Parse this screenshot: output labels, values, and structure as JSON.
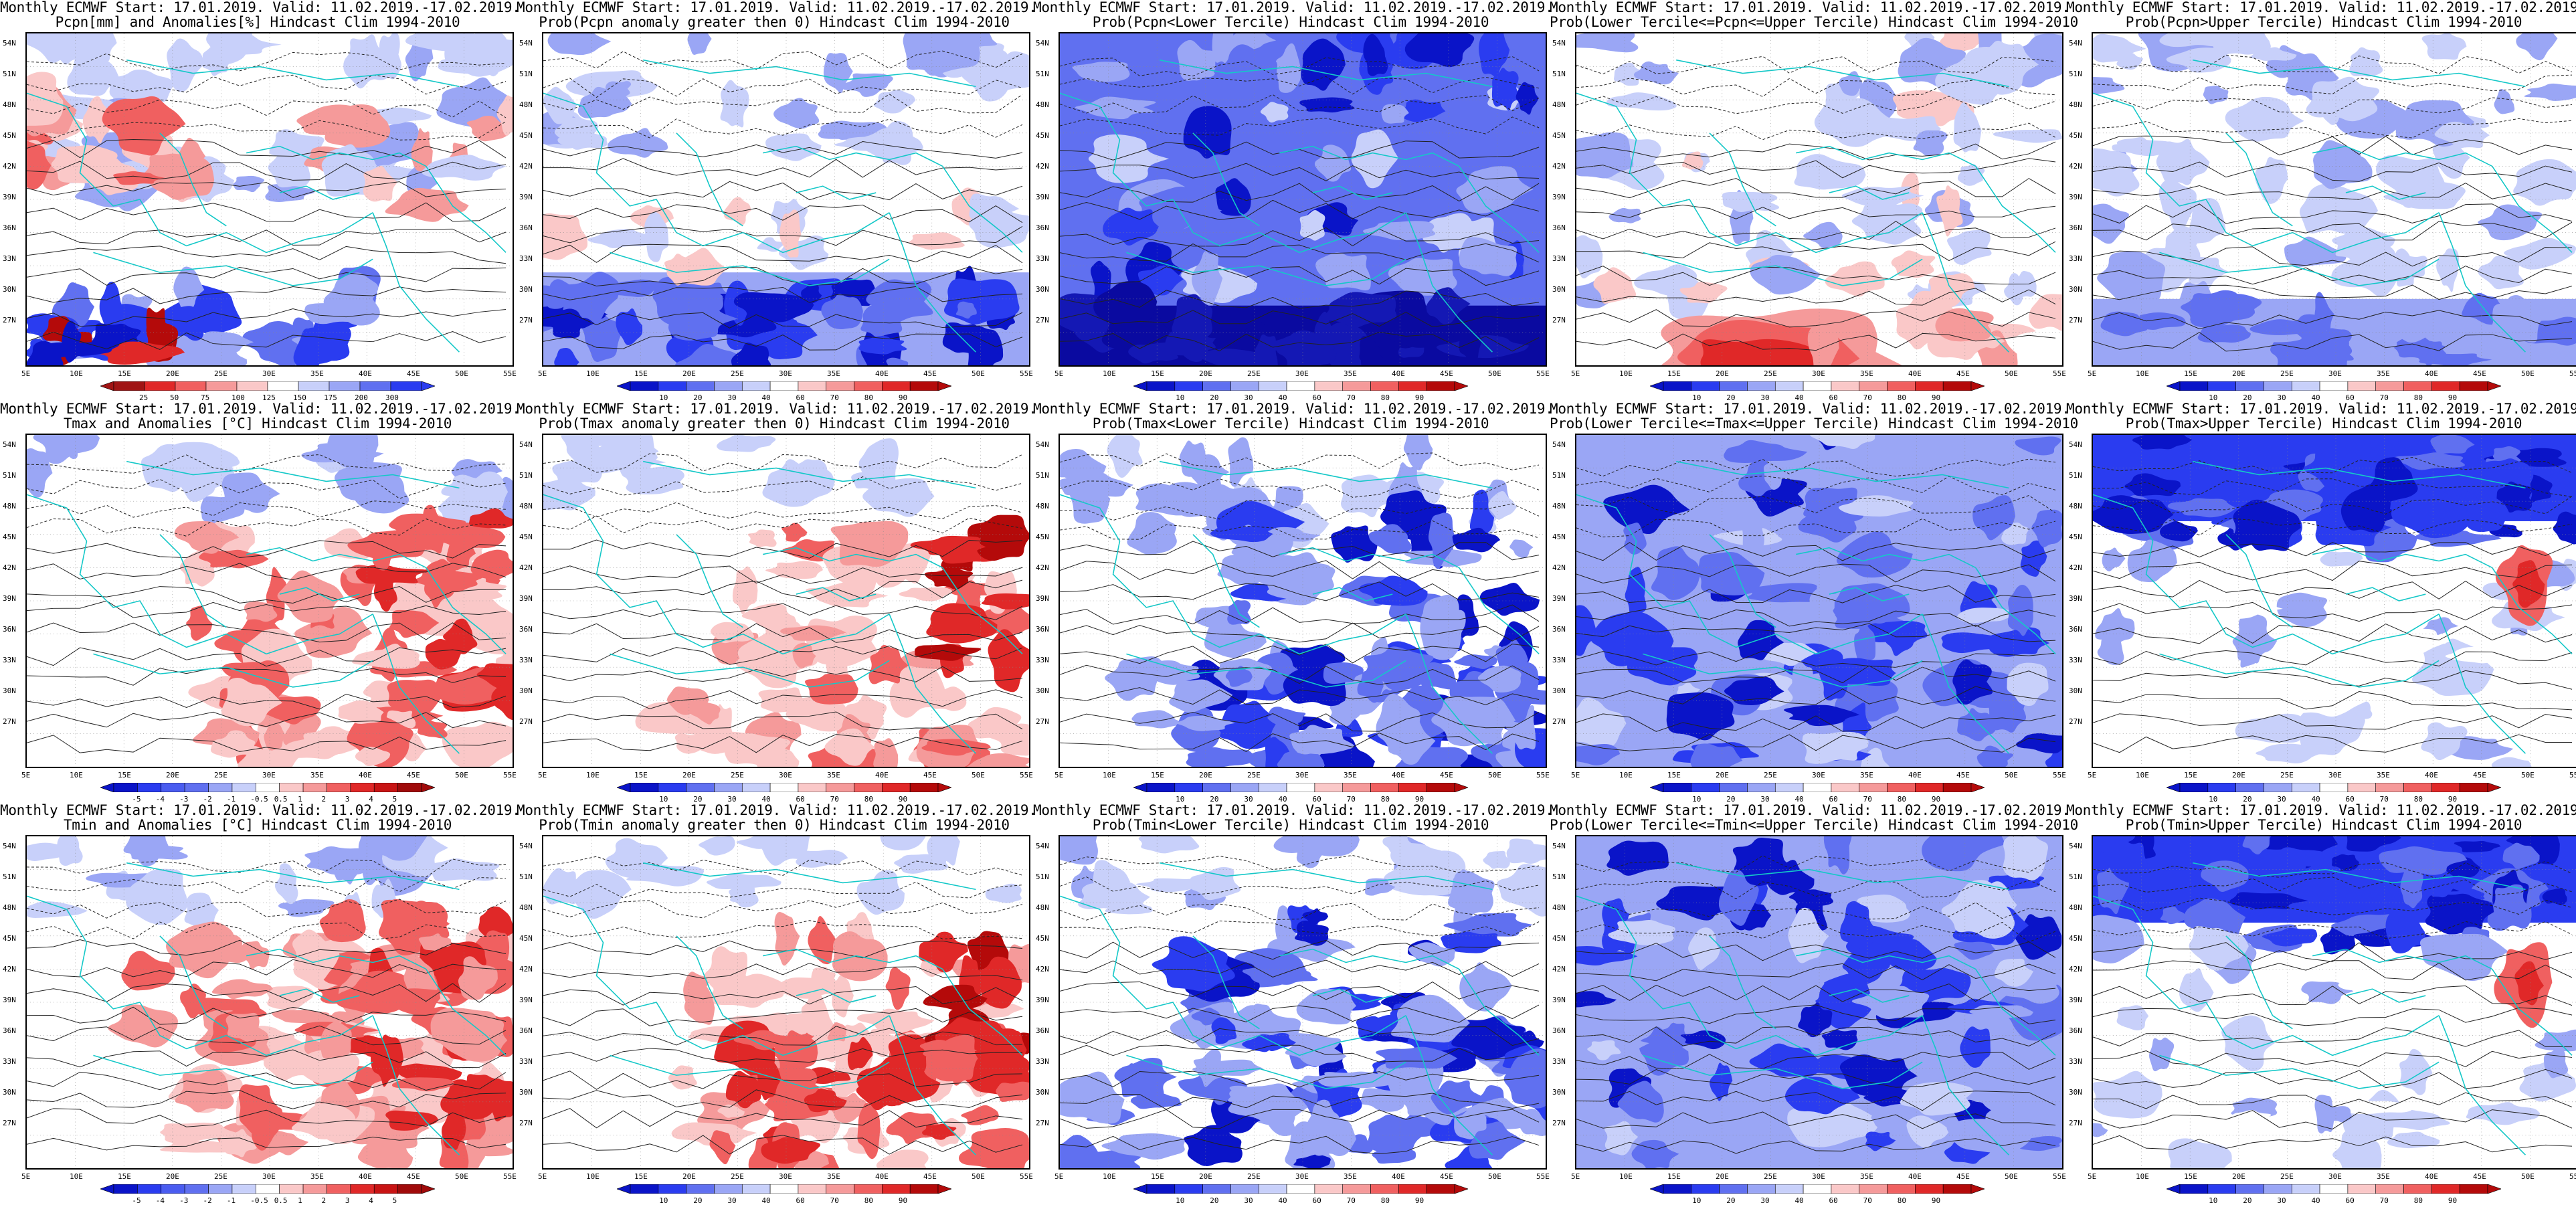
{
  "common_line1": "Monthly ECMWF Start: 17.01.2019. Valid: 11.02.2019.-17.02.2019.",
  "lat_labels": [
    "54N",
    "51N",
    "48N",
    "45N",
    "42N",
    "39N",
    "36N",
    "33N",
    "30N",
    "27N"
  ],
  "lon_labels": [
    "5E",
    "10E",
    "15E",
    "20E",
    "25E",
    "30E",
    "35E",
    "40E",
    "45E",
    "50E",
    "55E"
  ],
  "colorbars": {
    "pcpn_anom": [
      "25",
      "50",
      "75",
      "100",
      "125",
      "150",
      "175",
      "200",
      "300"
    ],
    "prob": [
      "10",
      "20",
      "30",
      "40",
      "60",
      "70",
      "80",
      "90"
    ],
    "temp_anom": [
      "-5",
      "-4",
      "-3",
      "-2",
      "-1",
      "-0.5",
      "0.5",
      "1",
      "2",
      "3",
      "4",
      "5"
    ]
  },
  "panels": [
    {
      "line2": "Pcpn[mm] and Anomalies[%] Hindcast Clim 1994-2010",
      "scheme": "pcpn",
      "colorbar": "pcpn_anom"
    },
    {
      "line2": "Prob(Pcpn anomaly greater then 0) Hindcast Clim 1994-2010",
      "scheme": "pcpnpos",
      "colorbar": "prob"
    },
    {
      "line2": "Prob(Pcpn<Lower Tercile) Hindcast Clim 1994-2010",
      "scheme": "pcpnlow",
      "colorbar": "prob"
    },
    {
      "line2": "Prob(Lower Tercile<=Pcpn<=Upper Tercile) Hindcast Clim 1994-2010",
      "scheme": "pcpnmid",
      "colorbar": "prob"
    },
    {
      "line2": "Prob(Pcpn>Upper Tercile) Hindcast Clim 1994-2010",
      "scheme": "pcpnup",
      "colorbar": "prob"
    },
    {
      "line2": "Tmax and Anomalies [°C] Hindcast Clim 1994-2010",
      "scheme": "tanom",
      "colorbar": "temp_anom"
    },
    {
      "line2": "Prob(Tmax anomaly greater then 0) Hindcast Clim 1994-2010",
      "scheme": "tpos",
      "colorbar": "prob"
    },
    {
      "line2": "Prob(Tmax<Lower Tercile) Hindcast Clim 1994-2010",
      "scheme": "tlow",
      "colorbar": "prob"
    },
    {
      "line2": "Prob(Lower Tercile<=Tmax<=Upper Tercile) Hindcast Clim 1994-2010",
      "scheme": "tmid",
      "colorbar": "prob"
    },
    {
      "line2": "Prob(Tmax>Upper Tercile) Hindcast Clim 1994-2010",
      "scheme": "tup",
      "colorbar": "prob"
    },
    {
      "line2": "Tmin and Anomalies [°C] Hindcast Clim 1994-2010",
      "scheme": "tanom2",
      "colorbar": "temp_anom"
    },
    {
      "line2": "Prob(Tmin anomaly greater then 0) Hindcast Clim 1994-2010",
      "scheme": "tpos2",
      "colorbar": "prob"
    },
    {
      "line2": "Prob(Tmin<Lower Tercile) Hindcast Clim 1994-2010",
      "scheme": "tlow",
      "colorbar": "prob"
    },
    {
      "line2": "Prob(Lower Tercile<=Tmin<=Upper Tercile) Hindcast Clim 1994-2010",
      "scheme": "tmid",
      "colorbar": "prob"
    },
    {
      "line2": "Prob(Tmin>Upper Tercile) Hindcast Clim 1994-2010",
      "scheme": "tup2",
      "colorbar": "prob"
    }
  ]
}
